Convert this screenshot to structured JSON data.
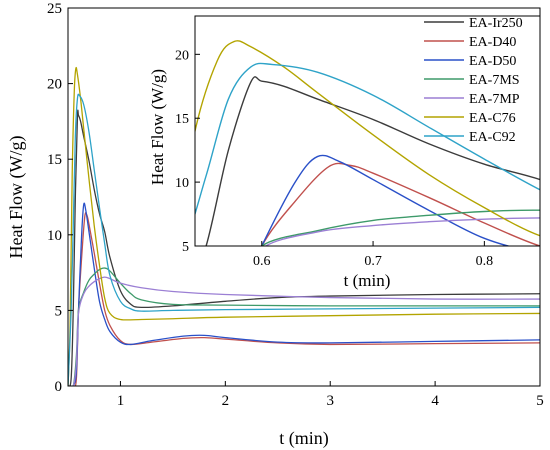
{
  "chart_data": {
    "type": "line",
    "main": {
      "xlabel": "t (min)",
      "ylabel": "Heat Flow (W/g)",
      "xlim": [
        0.5,
        5
      ],
      "ylim": [
        0,
        25
      ],
      "xticks": [
        1,
        2,
        3,
        4,
        5
      ],
      "yticks": [
        0,
        5,
        10,
        15,
        20,
        25
      ]
    },
    "inset": {
      "xlabel": "t (min)",
      "ylabel": "Heat Flow (W/g)",
      "xlim": [
        0.54,
        0.85
      ],
      "ylim": [
        5,
        23
      ],
      "xticks": [
        0.6,
        0.7,
        0.8
      ],
      "yticks": [
        5,
        10,
        15,
        20
      ]
    },
    "legend_position": "top-right",
    "series": [
      {
        "name": "EA-Ir250",
        "color": "#3c3c3c",
        "points": [
          [
            0.5,
            0
          ],
          [
            0.53,
            0.5
          ],
          [
            0.55,
            5
          ],
          [
            0.57,
            12.5
          ],
          [
            0.59,
            17.8
          ],
          [
            0.6,
            17.9
          ],
          [
            0.62,
            17.5
          ],
          [
            0.65,
            16.5
          ],
          [
            0.7,
            14.9
          ],
          [
            0.75,
            13.0
          ],
          [
            0.8,
            11.4
          ],
          [
            0.85,
            10.2
          ],
          [
            0.9,
            8.5
          ],
          [
            1.0,
            6.3
          ],
          [
            1.1,
            5.4
          ],
          [
            1.2,
            5.2
          ],
          [
            1.5,
            5.3
          ],
          [
            2.0,
            5.6
          ],
          [
            2.5,
            5.85
          ],
          [
            3.0,
            5.95
          ],
          [
            4.0,
            6.05
          ],
          [
            5.0,
            6.1
          ]
        ]
      },
      {
        "name": "EA-D40",
        "color": "#c0504d",
        "points": [
          [
            0.5,
            0
          ],
          [
            0.55,
            0
          ],
          [
            0.58,
            0.5
          ],
          [
            0.6,
            5
          ],
          [
            0.63,
            8.5
          ],
          [
            0.66,
            11.2
          ],
          [
            0.68,
            11.3
          ],
          [
            0.7,
            10.7
          ],
          [
            0.75,
            8.8
          ],
          [
            0.8,
            6.8
          ],
          [
            0.85,
            5.0
          ],
          [
            0.9,
            4.0
          ],
          [
            1.0,
            3.0
          ],
          [
            1.1,
            2.75
          ],
          [
            1.3,
            2.9
          ],
          [
            1.6,
            3.15
          ],
          [
            1.8,
            3.2
          ],
          [
            2.0,
            3.1
          ],
          [
            2.5,
            2.85
          ],
          [
            3.0,
            2.75
          ],
          [
            4.0,
            2.8
          ],
          [
            5.0,
            2.85
          ]
        ]
      },
      {
        "name": "EA-D50",
        "color": "#2a50c8",
        "points": [
          [
            0.5,
            0
          ],
          [
            0.55,
            0
          ],
          [
            0.58,
            1
          ],
          [
            0.6,
            5
          ],
          [
            0.63,
            10
          ],
          [
            0.65,
            12.0
          ],
          [
            0.67,
            11.6
          ],
          [
            0.7,
            10.2
          ],
          [
            0.75,
            7.8
          ],
          [
            0.8,
            5.6
          ],
          [
            0.85,
            4.4
          ],
          [
            0.9,
            3.6
          ],
          [
            1.0,
            2.9
          ],
          [
            1.1,
            2.75
          ],
          [
            1.3,
            3.0
          ],
          [
            1.6,
            3.3
          ],
          [
            1.8,
            3.35
          ],
          [
            2.0,
            3.2
          ],
          [
            2.5,
            2.9
          ],
          [
            3.0,
            2.85
          ],
          [
            4.0,
            2.95
          ],
          [
            5.0,
            3.05
          ]
        ]
      },
      {
        "name": "EA-7MS",
        "color": "#3e9a6a",
        "points": [
          [
            0.5,
            0
          ],
          [
            0.55,
            0
          ],
          [
            0.58,
            2
          ],
          [
            0.6,
            5
          ],
          [
            0.65,
            6.2
          ],
          [
            0.7,
            7.0
          ],
          [
            0.75,
            7.4
          ],
          [
            0.8,
            7.7
          ],
          [
            0.85,
            7.8
          ],
          [
            0.9,
            7.6
          ],
          [
            1.0,
            6.8
          ],
          [
            1.1,
            6.1
          ],
          [
            1.2,
            5.7
          ],
          [
            1.5,
            5.4
          ],
          [
            2.0,
            5.35
          ],
          [
            3.0,
            5.3
          ],
          [
            4.0,
            5.3
          ],
          [
            5.0,
            5.3
          ]
        ]
      },
      {
        "name": "EA-7MP",
        "color": "#9b7fd4",
        "points": [
          [
            0.5,
            0
          ],
          [
            0.55,
            0
          ],
          [
            0.58,
            1.5
          ],
          [
            0.6,
            4.8
          ],
          [
            0.65,
            6.1
          ],
          [
            0.7,
            6.6
          ],
          [
            0.75,
            6.9
          ],
          [
            0.8,
            7.1
          ],
          [
            0.85,
            7.2
          ],
          [
            0.9,
            7.1
          ],
          [
            1.0,
            6.8
          ],
          [
            1.2,
            6.5
          ],
          [
            1.5,
            6.25
          ],
          [
            2.0,
            6.05
          ],
          [
            3.0,
            5.85
          ],
          [
            4.0,
            5.75
          ],
          [
            5.0,
            5.75
          ]
        ]
      },
      {
        "name": "EA-C76",
        "color": "#b3a400",
        "points": [
          [
            0.5,
            0
          ],
          [
            0.52,
            4
          ],
          [
            0.54,
            14
          ],
          [
            0.56,
            19.5
          ],
          [
            0.575,
            21.0
          ],
          [
            0.59,
            20.6
          ],
          [
            0.62,
            19.0
          ],
          [
            0.65,
            17.0
          ],
          [
            0.7,
            13.7
          ],
          [
            0.75,
            10.6
          ],
          [
            0.8,
            8.0
          ],
          [
            0.85,
            5.8
          ],
          [
            0.9,
            4.8
          ],
          [
            1.0,
            4.4
          ],
          [
            1.2,
            4.4
          ],
          [
            1.5,
            4.45
          ],
          [
            2.0,
            4.55
          ],
          [
            3.0,
            4.65
          ],
          [
            4.0,
            4.75
          ],
          [
            5.0,
            4.8
          ]
        ]
      },
      {
        "name": "EA-C92",
        "color": "#2ea3c8",
        "points": [
          [
            0.5,
            0
          ],
          [
            0.53,
            5
          ],
          [
            0.55,
            10.5
          ],
          [
            0.57,
            16.5
          ],
          [
            0.59,
            19.0
          ],
          [
            0.61,
            19.2
          ],
          [
            0.65,
            18.6
          ],
          [
            0.7,
            16.8
          ],
          [
            0.75,
            14.3
          ],
          [
            0.8,
            11.8
          ],
          [
            0.85,
            9.4
          ],
          [
            0.9,
            7.3
          ],
          [
            1.0,
            5.6
          ],
          [
            1.1,
            5.1
          ],
          [
            1.2,
            4.95
          ],
          [
            1.5,
            5.0
          ],
          [
            2.0,
            5.05
          ],
          [
            3.0,
            5.1
          ],
          [
            4.0,
            5.15
          ],
          [
            5.0,
            5.2
          ]
        ]
      }
    ]
  }
}
